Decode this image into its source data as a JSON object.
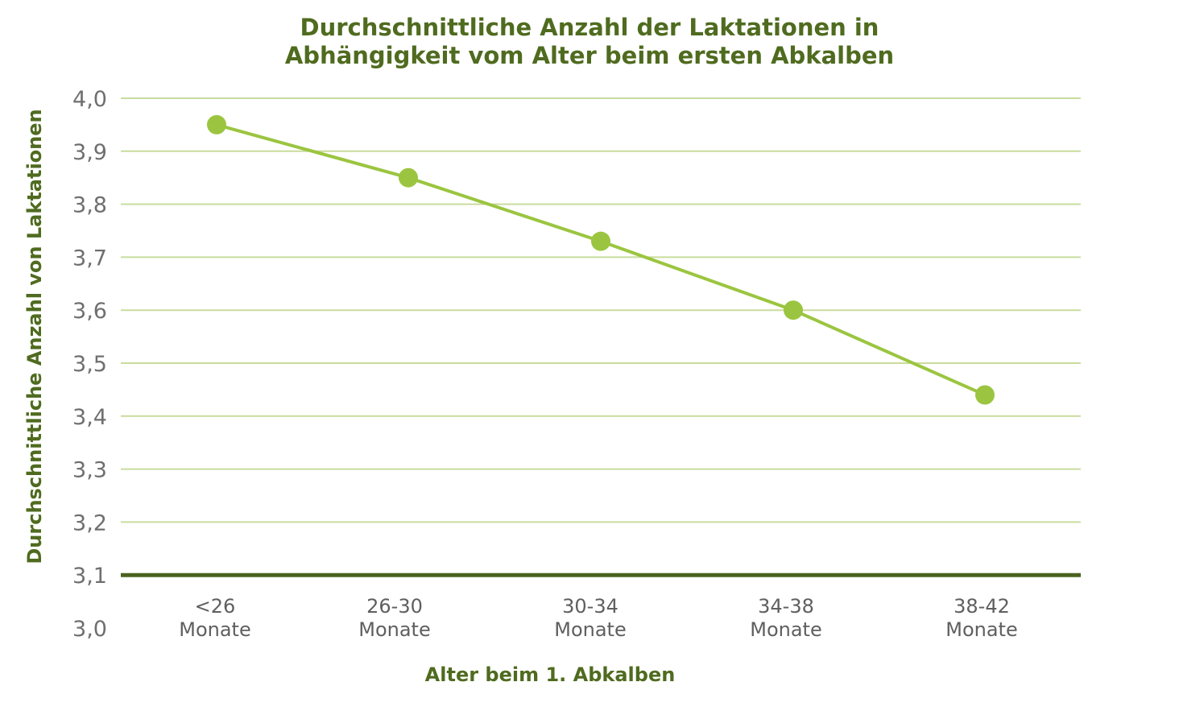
{
  "chart_data": {
    "type": "line",
    "title": "Durchschnittliche Anzahl der Laktationen in Abhängigkeit vom Alter beim ersten Abkalben",
    "title_lines": [
      "Durchschnittliche Anzahl der Laktationen in",
      "Abhängigkeit vom Alter beim ersten Abkalben"
    ],
    "xlabel": "Alter beim 1. Abkalben",
    "ylabel": "Durchschnittliche Anzahl von Laktationen",
    "categories": [
      "<26 Monate",
      "26-30 Monate",
      "30-34 Monate",
      "34-38 Monate",
      "38-42 Monate"
    ],
    "category_lines": [
      [
        "<26",
        "Monate"
      ],
      [
        "26-30",
        "Monate"
      ],
      [
        "30-34",
        "Monate"
      ],
      [
        "34-38",
        "Monate"
      ],
      [
        "38-42",
        "Monate"
      ]
    ],
    "values": [
      3.95,
      3.85,
      3.73,
      3.6,
      3.44
    ],
    "yticks": [
      "4,0",
      "3,9",
      "3,8",
      "3,7",
      "3,6",
      "3,5",
      "3,4",
      "3,3",
      "3,2",
      "3,1",
      "3,0"
    ],
    "ytick_values": [
      4.0,
      3.9,
      3.8,
      3.7,
      3.6,
      3.5,
      3.4,
      3.3,
      3.2,
      3.1,
      3.0
    ],
    "ylim": [
      3.0,
      4.0
    ],
    "grid": true,
    "legend": "none",
    "colors": {
      "title": "#4f6b1f",
      "line": "#9bc540",
      "grid": "#c9dc9d",
      "baseline": "#4b6220",
      "tick_text": "#6f6f6f"
    }
  }
}
